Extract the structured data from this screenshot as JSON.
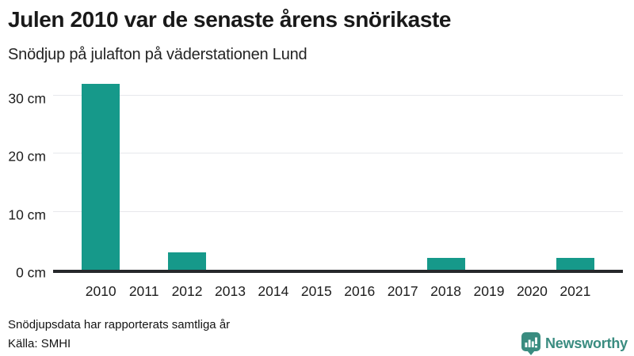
{
  "header": {
    "title": "Julen 2010 var de senaste årens snörikaste",
    "subtitle": "Snödjup på julafton på väderstationen Lund"
  },
  "chart_data": {
    "type": "bar",
    "title": "Julen 2010 var de senaste årens snörikaste",
    "subtitle": "Snödjup på julafton på väderstationen Lund",
    "categories": [
      "2010",
      "2011",
      "2012",
      "2013",
      "2014",
      "2015",
      "2016",
      "2017",
      "2018",
      "2019",
      "2020",
      "2021"
    ],
    "values": [
      32,
      0,
      3,
      0,
      0,
      0,
      0,
      0,
      2,
      0,
      0,
      2
    ],
    "unit": "cm",
    "y_ticks": [
      0,
      10,
      20,
      30
    ],
    "y_tick_labels": [
      "0 cm",
      "10 cm",
      "20 cm",
      "30 cm"
    ],
    "ylim": [
      0,
      33
    ],
    "xlabel": "",
    "ylabel": "",
    "grid": true,
    "legend": false
  },
  "footer": {
    "note": "Snödjupsdata har rapporterats samtliga år",
    "source": "Källa: SMHI",
    "brand": "Newsworthy"
  },
  "colors": {
    "bar": "#16998a",
    "brand": "#3a8c80",
    "baseline": "#26282b",
    "gridline": "#e7e8ec",
    "title_text": "#191919"
  }
}
